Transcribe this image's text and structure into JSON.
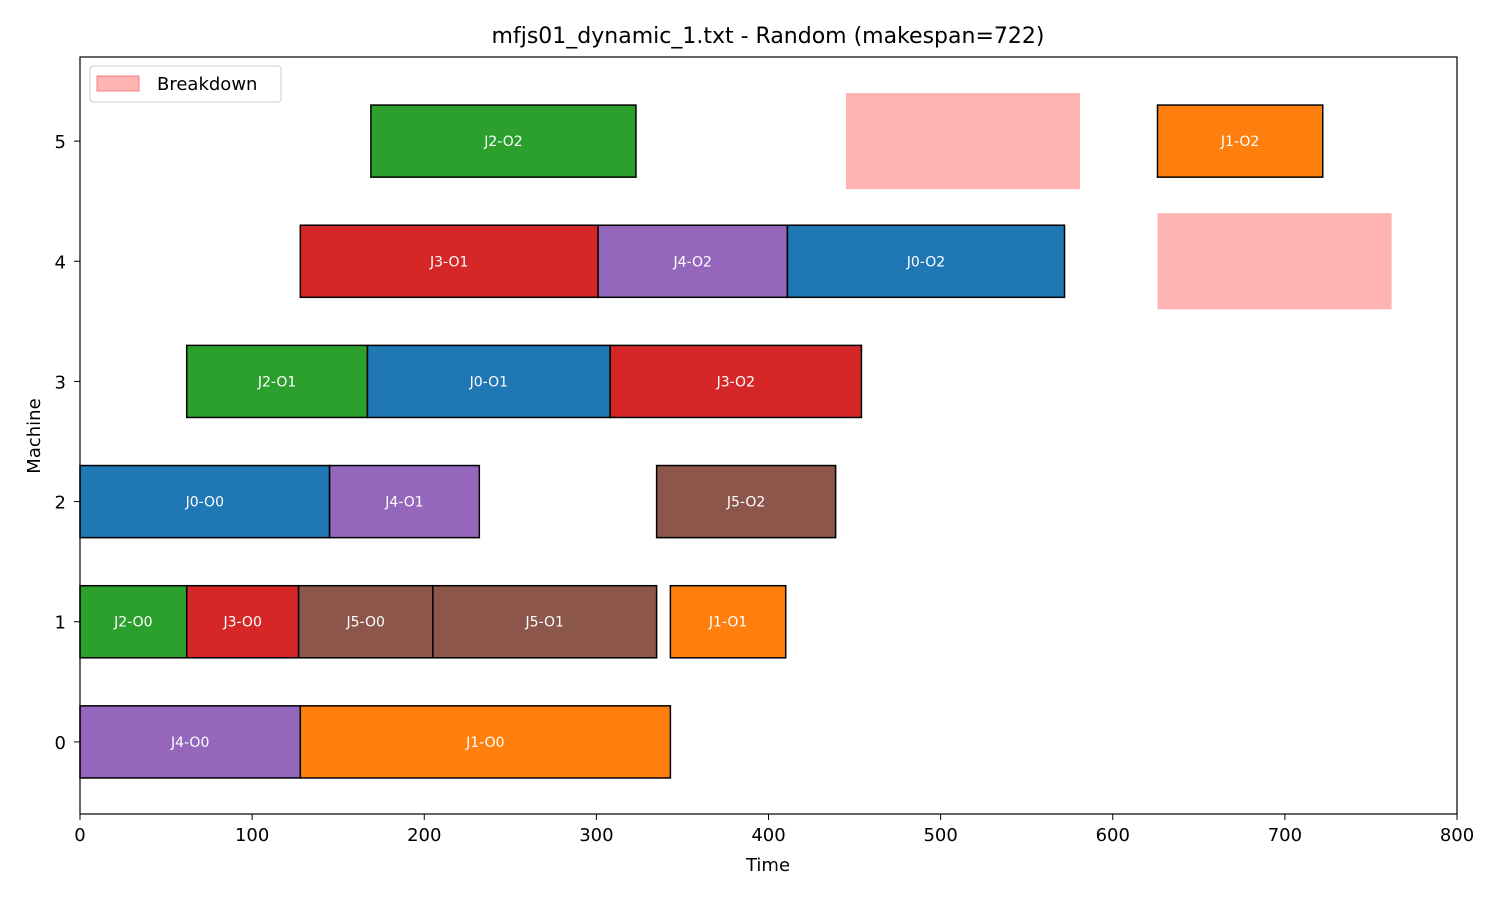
{
  "chart_data": {
    "type": "gantt",
    "title": "mfjs01_dynamic_1.txt - Random (makespan=722)",
    "xlabel": "Time",
    "ylabel": "Machine",
    "xlim": [
      0,
      800
    ],
    "ylim": [
      -0.6,
      5.7
    ],
    "xticks": [
      0,
      100,
      200,
      300,
      400,
      500,
      600,
      700,
      800
    ],
    "yticks": [
      0,
      1,
      2,
      3,
      4,
      5
    ],
    "grid": false,
    "legend": {
      "placement": "top-left",
      "entries": [
        {
          "label": "Breakdown",
          "color": "#ffb3b3",
          "edge": "#f08080"
        }
      ]
    },
    "job_colors": {
      "J0": "#1f77b4",
      "J1": "#ff7f0e",
      "J2": "#2ca02c",
      "J3": "#d62728",
      "J4": "#9467bd",
      "J5": "#8c564b"
    },
    "operations": [
      {
        "machine": 0,
        "start": 0,
        "end": 128,
        "label": "J4-O0",
        "job": "J4"
      },
      {
        "machine": 0,
        "start": 128,
        "end": 343,
        "label": "J1-O0",
        "job": "J1"
      },
      {
        "machine": 1,
        "start": 0,
        "end": 62,
        "label": "J2-O0",
        "job": "J2"
      },
      {
        "machine": 1,
        "start": 62,
        "end": 127,
        "label": "J3-O0",
        "job": "J3"
      },
      {
        "machine": 1,
        "start": 127,
        "end": 205,
        "label": "J5-O0",
        "job": "J5"
      },
      {
        "machine": 1,
        "start": 205,
        "end": 335,
        "label": "J5-O1",
        "job": "J5"
      },
      {
        "machine": 1,
        "start": 343,
        "end": 410,
        "label": "J1-O1",
        "job": "J1"
      },
      {
        "machine": 2,
        "start": 0,
        "end": 145,
        "label": "J0-O0",
        "job": "J0"
      },
      {
        "machine": 2,
        "start": 145,
        "end": 232,
        "label": "J4-O1",
        "job": "J4"
      },
      {
        "machine": 2,
        "start": 335,
        "end": 439,
        "label": "J5-O2",
        "job": "J5"
      },
      {
        "machine": 3,
        "start": 62,
        "end": 167,
        "label": "J2-O1",
        "job": "J2"
      },
      {
        "machine": 3,
        "start": 167,
        "end": 308,
        "label": "J0-O1",
        "job": "J0"
      },
      {
        "machine": 3,
        "start": 308,
        "end": 454,
        "label": "J3-O2",
        "job": "J3"
      },
      {
        "machine": 4,
        "start": 128,
        "end": 301,
        "label": "J3-O1",
        "job": "J3"
      },
      {
        "machine": 4,
        "start": 301,
        "end": 411,
        "label": "J4-O2",
        "job": "J4"
      },
      {
        "machine": 4,
        "start": 411,
        "end": 572,
        "label": "J0-O2",
        "job": "J0"
      },
      {
        "machine": 5,
        "start": 169,
        "end": 323,
        "label": "J2-O2",
        "job": "J2"
      },
      {
        "machine": 5,
        "start": 626,
        "end": 722,
        "label": "J1-O2",
        "job": "J1"
      }
    ],
    "breakdowns": [
      {
        "machine": 5,
        "start": 445,
        "end": 581
      },
      {
        "machine": 4,
        "start": 626,
        "end": 762
      }
    ]
  }
}
